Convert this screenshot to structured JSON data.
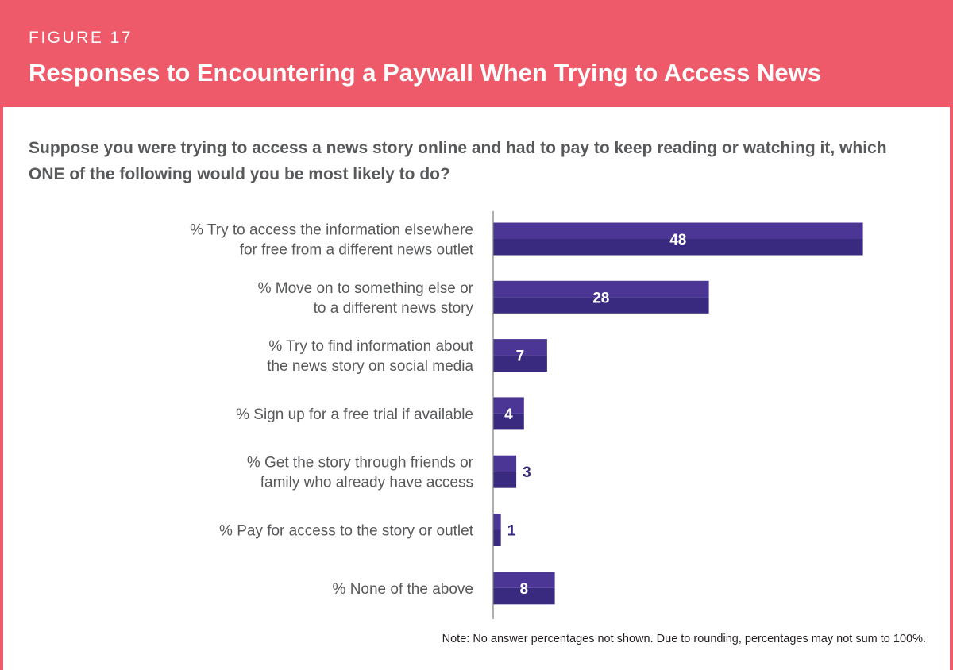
{
  "figure_label": "FIGURE 17",
  "title": "Responses to Encountering a Paywall When Trying to Access News",
  "question": "Suppose you were trying to access a news story online and had to pay to keep reading or watching it, which ONE of the following would you be most likely to do?",
  "note": "Note: No answer percentages not shown. Due to rounding, percentages may not sum to 100%.",
  "colors": {
    "banner": "#ef5a6a",
    "bar_top": "#4b3696",
    "bar_bottom": "#3a2a7f",
    "axis": "#7a7a7a",
    "value_inside": "#ffffff",
    "value_outside": "#3a2a7f"
  },
  "chart_data": {
    "type": "bar",
    "orientation": "horizontal",
    "categories": [
      [
        "% Try to access the information elsewhere",
        "for free from a different news outlet"
      ],
      [
        "% Move on to something else or",
        "to a different news story"
      ],
      [
        "% Try to find information about",
        "the news story on social media"
      ],
      [
        "% Sign up for a free trial if available"
      ],
      [
        "% Get the story through friends or",
        "family who already have access"
      ],
      [
        "% Pay for access to the story or outlet"
      ],
      [
        "% None of the above"
      ]
    ],
    "values": [
      48,
      28,
      7,
      4,
      3,
      1,
      8
    ],
    "xlim": [
      0,
      60
    ],
    "grid": false,
    "legend": "none"
  }
}
